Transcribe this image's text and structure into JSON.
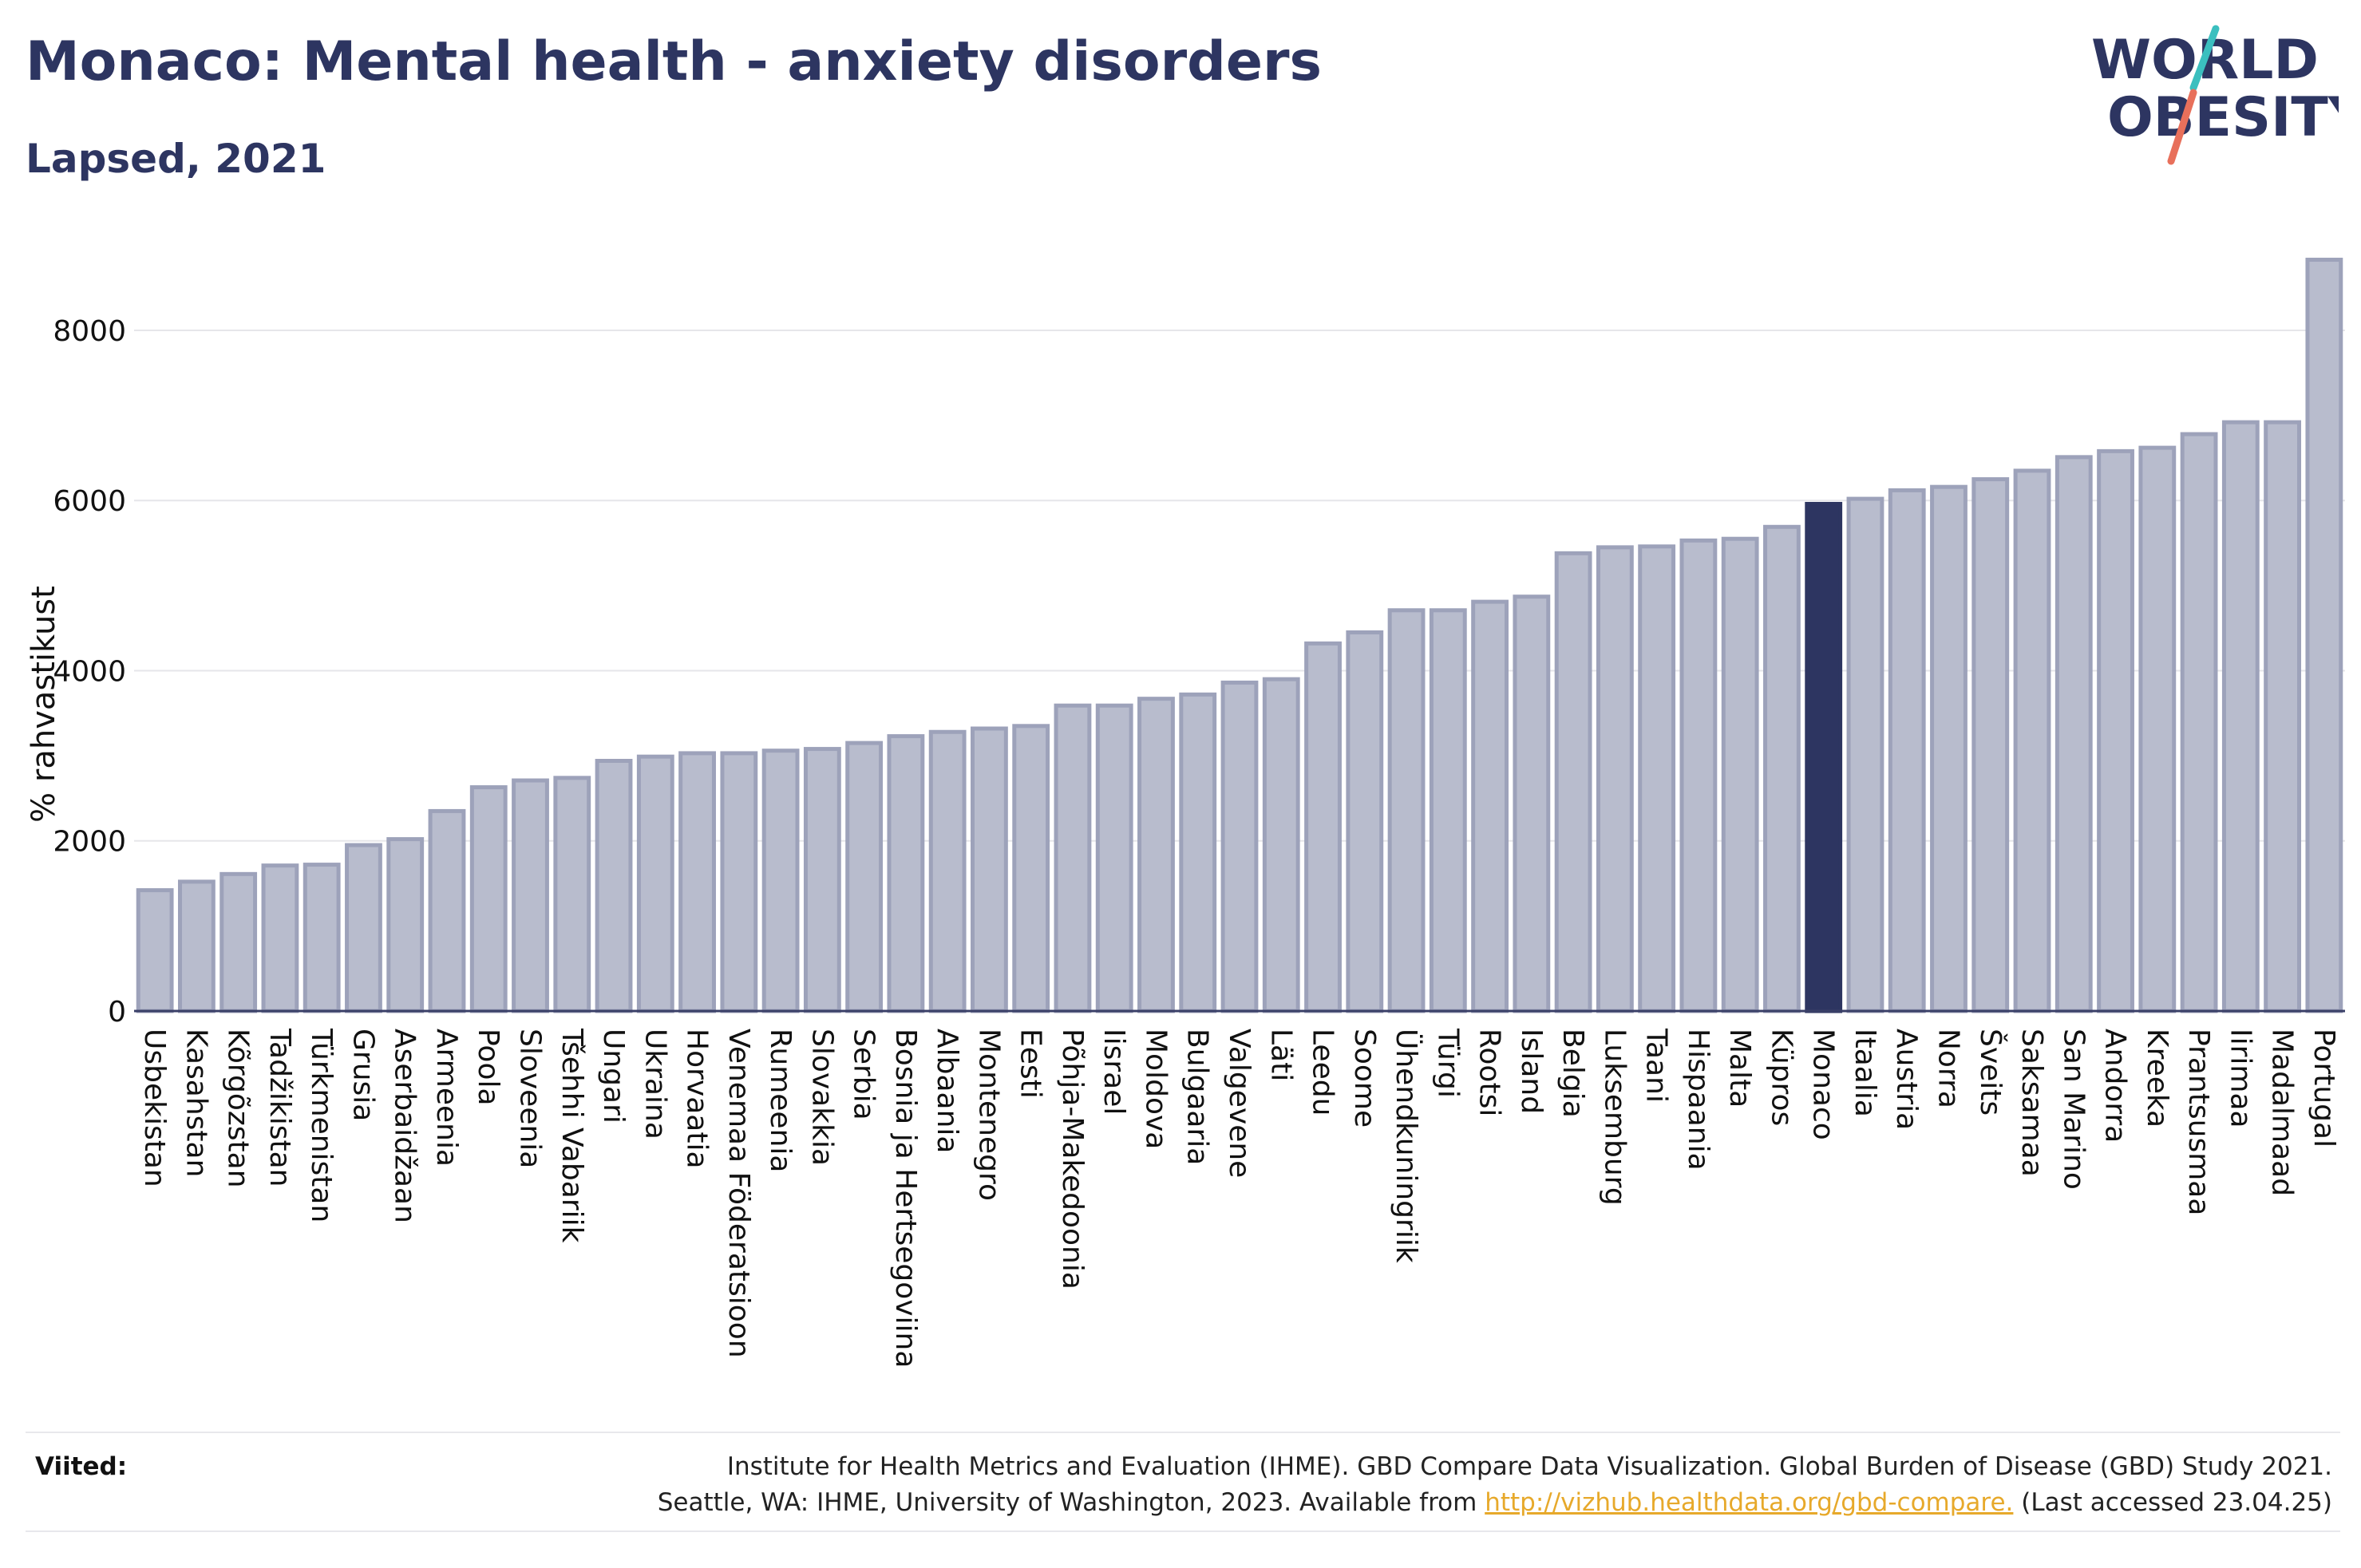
{
  "header": {
    "title": "Monaco: Mental health - anxiety disorders",
    "subtitle": "Lapsed, 2021"
  },
  "logo": {
    "line1": "WORLD",
    "line2": "OBESITY"
  },
  "colors": {
    "bar": "#b8bccd",
    "bar_stroke": "#9da2ba",
    "highlight": "#2d3561",
    "title": "#2d3561",
    "grid": "#e6e6ea",
    "link": "#e7a92b"
  },
  "chart_data": {
    "type": "bar",
    "ylabel": "% rahvastikust",
    "ylim": [
      0,
      8900
    ],
    "yticks": [
      0,
      2000,
      4000,
      6000,
      8000
    ],
    "grid": true,
    "highlight": "Monaco",
    "categories": [
      "Usbekistan",
      "Kasahstan",
      "Kõrgõzstan",
      "Tadžikistan",
      "Türkmenistan",
      "Grusia",
      "Aserbaidžaan",
      "Armeenia",
      "Poola",
      "Sloveenia",
      "Tšehhi Vabariik",
      "Ungari",
      "Ukraina",
      "Horvaatia",
      "Venemaa Föderatsioon",
      "Rumeenia",
      "Slovakkia",
      "Serbia",
      "Bosnia ja Hertsegoviina",
      "Albaania",
      "Montenegro",
      "Eesti",
      "Põhja-Makedoonia",
      "Iisrael",
      "Moldova",
      "Bulgaaria",
      "Valgevene",
      "Läti",
      "Leedu",
      "Soome",
      "Ühendkuningriik",
      "Türgi",
      "Rootsi",
      "Island",
      "Belgia",
      "Luksemburg",
      "Taani",
      "Hispaania",
      "Malta",
      "Küpros",
      "Monaco",
      "Itaalia",
      "Austria",
      "Norra",
      "Šveits",
      "Saksamaa",
      "San Marino",
      "Andorra",
      "Kreeka",
      "Prantsusmaa",
      "Iirimaa",
      "Madalmaad",
      "Portugal"
    ],
    "values": [
      1420,
      1520,
      1610,
      1710,
      1720,
      1950,
      2020,
      2350,
      2630,
      2710,
      2740,
      2940,
      2990,
      3030,
      3030,
      3060,
      3080,
      3150,
      3230,
      3280,
      3320,
      3350,
      3590,
      3590,
      3670,
      3720,
      3860,
      3900,
      4320,
      4450,
      4710,
      4710,
      4810,
      4870,
      5380,
      5450,
      5460,
      5530,
      5550,
      5690,
      5960,
      6020,
      6120,
      6160,
      6250,
      6350,
      6510,
      6580,
      6620,
      6780,
      6920,
      6920,
      8830
    ]
  },
  "footer": {
    "label": "Viited:",
    "line1": "Institute for Health Metrics and Evaluation (IHME). GBD Compare Data Visualization. Global Burden of Disease (GBD) Study 2021.",
    "line2_prefix": "Seattle, WA: IHME, University of Washington, 2023. Available from",
    "link": "http://vizhub.healthdata.org/gbd-compare.",
    "line2_suffix": "(Last accessed 23.04.25)"
  }
}
